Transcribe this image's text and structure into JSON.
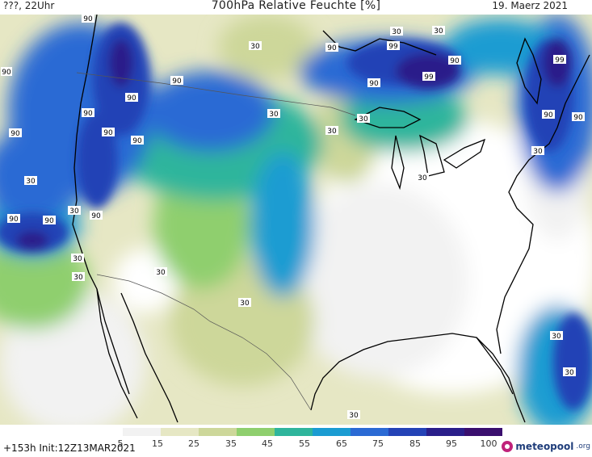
{
  "header": {
    "left": "???, 22Uhr",
    "title": "700hPa Relative Feuchte [%]",
    "date": "19. Maerz 2021"
  },
  "footer": {
    "run_info": "+153h  Init:12Z13MAR2021",
    "brand_name": "meteopool",
    "brand_tld": ".org"
  },
  "legend": {
    "labels": [
      "5",
      "15",
      "25",
      "35",
      "45",
      "55",
      "65",
      "75",
      "85",
      "95",
      "100"
    ],
    "colors": [
      "#ffffff",
      "#f2f2f2",
      "#e6e7c4",
      "#cdd79a",
      "#8fcf6e",
      "#2fb59c",
      "#1b9cd2",
      "#2b6ad4",
      "#2443b6",
      "#2a1e8a",
      "#3a0f6e"
    ]
  },
  "contour_labels": {
    "values": [
      "90",
      "30",
      "90",
      "99",
      "30",
      "90",
      "99",
      "90",
      "90",
      "90",
      "90",
      "99",
      "30",
      "90",
      "30",
      "90",
      "30",
      "90",
      "90",
      "90",
      "90",
      "90",
      "90",
      "30",
      "30",
      "30",
      "30",
      "30",
      "30",
      "30",
      "30",
      "30",
      "30",
      "30",
      "30",
      "90"
    ]
  }
}
